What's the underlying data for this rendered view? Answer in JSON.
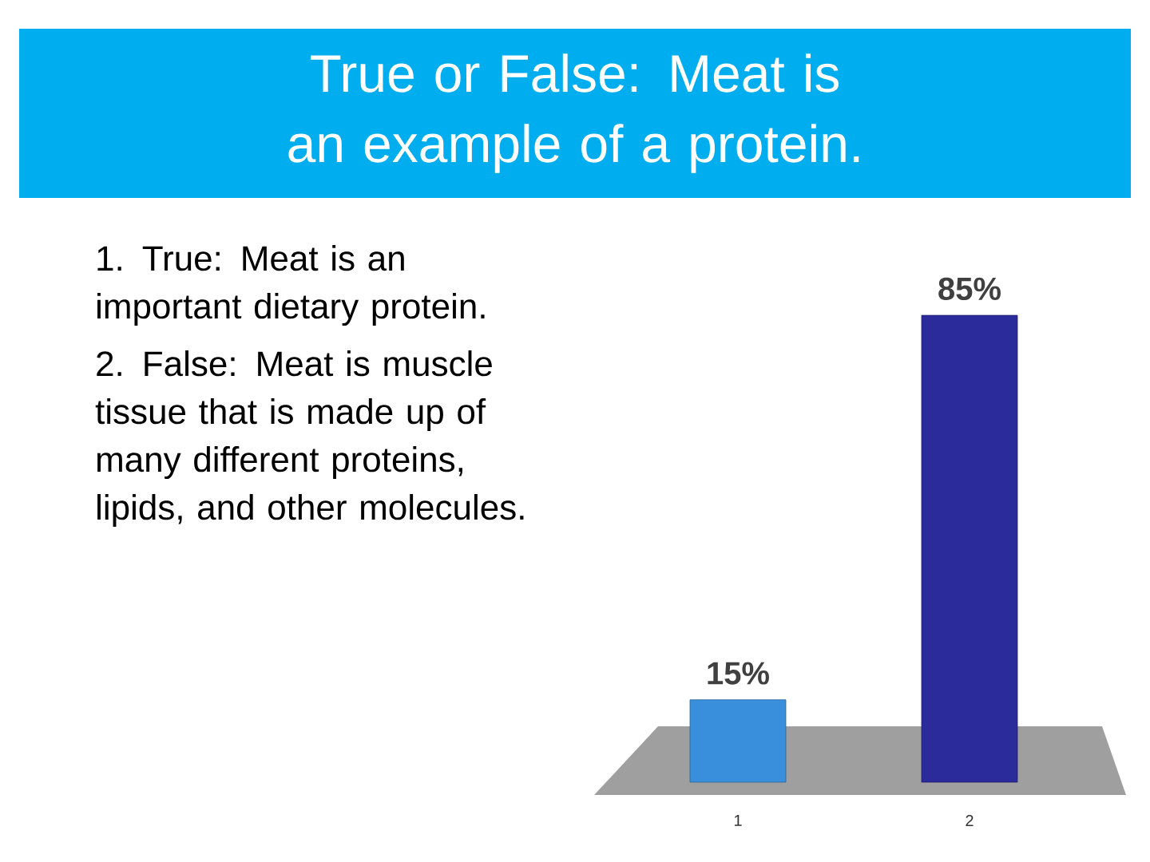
{
  "chart_data": {
    "type": "bar",
    "title": "True or False: Meat is an example of a protein.",
    "categories": [
      "1",
      "2"
    ],
    "values": [
      15,
      85
    ],
    "colors": [
      "#3a8fdc",
      "#2b2b9c"
    ],
    "value_labels": [
      "15%",
      "85%"
    ],
    "annotations": [
      "1.  True: Meat is an important dietary protein.",
      "2.  False: Meat is muscle tissue that is made up of many different proteins, lipids, and other molecules."
    ]
  }
}
